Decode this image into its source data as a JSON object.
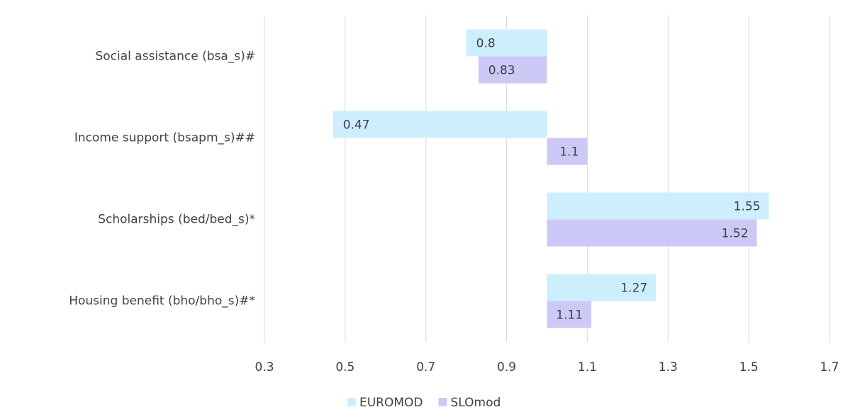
{
  "chart_data": {
    "type": "hbar",
    "categories": [
      "Social assistance (bsa_s)#",
      "Income support (bsapm_s)##",
      "Scholarships (bed/bed_s)*",
      "Housing benefit (bho/bho_s)#*"
    ],
    "series": [
      {
        "name": "EUROMOD",
        "color": "#cdeefd",
        "values": [
          0.8,
          0.47,
          1.55,
          1.27
        ]
      },
      {
        "name": "SLOmod",
        "color": "#cdc9f7",
        "values": [
          0.83,
          1.1,
          1.52,
          1.11
        ]
      }
    ],
    "xlim": [
      0.3,
      1.7
    ],
    "xticks": [
      0.3,
      0.5,
      0.7,
      0.9,
      1.1,
      1.3,
      1.5,
      1.7
    ],
    "origin": 1,
    "grid": true,
    "legend": "bottom"
  }
}
